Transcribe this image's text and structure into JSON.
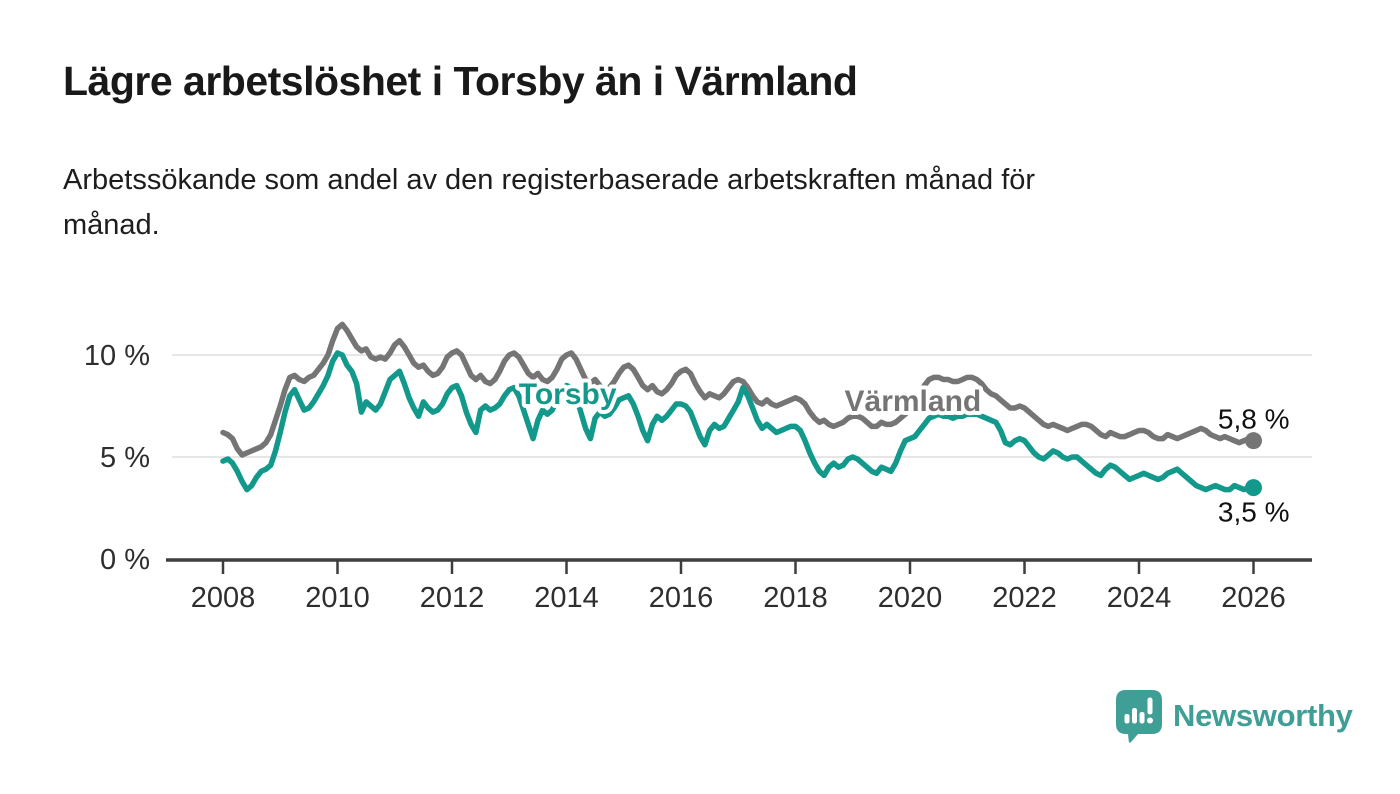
{
  "title": "Lägre arbetslöshet i Torsby än i Värmland",
  "subtitle": "Arbetssökande som andel av den registerbaserade arbetskraften månad för månad.",
  "subtitle_lines": {
    "0": "Arbetssökande som andel av den registerbaserade arbetskraften månad för",
    "1": "månad."
  },
  "footer": {
    "brand": "Newsworthy"
  },
  "colors": {
    "torsby": "#12998b",
    "varmland": "#757575",
    "grid": "#dedede",
    "axis": "#3d3d3d",
    "text": "#2e2e2e",
    "brand": "#3f9f96"
  },
  "chart_data": {
    "type": "line",
    "title": "Lägre arbetslöshet i Torsby än i Värmland",
    "subtitle": "Arbetssökande som andel av den registerbaserade arbetskraften månad för månad.",
    "unit": "%",
    "frequency": "monthly",
    "x_start": 2008.0,
    "x_step": 0.0833333,
    "xlim": [
      2007,
      2027
    ],
    "ylim": [
      0,
      11.8
    ],
    "grid": "horizontal",
    "x_ticks": [
      2008,
      2010,
      2012,
      2014,
      2016,
      2018,
      2020,
      2022,
      2024,
      2026
    ],
    "y_ticks": [
      {
        "value": 0,
        "label": "0 %"
      },
      {
        "value": 5,
        "label": "5 %"
      },
      {
        "value": 10,
        "label": "10 %"
      }
    ],
    "series": [
      {
        "name": "Värmland",
        "color": "#757575",
        "end_value": 5.8,
        "end_label": "5,8 %",
        "values": [
          6.2,
          6.1,
          5.9,
          5.4,
          5.1,
          5.2,
          5.3,
          5.4,
          5.5,
          5.7,
          6.1,
          6.8,
          7.5,
          8.3,
          8.9,
          9.0,
          8.8,
          8.7,
          8.9,
          9.0,
          9.3,
          9.6,
          10.0,
          10.7,
          11.3,
          11.5,
          11.2,
          10.8,
          10.4,
          10.2,
          10.3,
          9.9,
          9.8,
          9.9,
          9.8,
          10.1,
          10.5,
          10.7,
          10.4,
          10.0,
          9.6,
          9.4,
          9.5,
          9.2,
          9.0,
          9.1,
          9.4,
          9.9,
          10.1,
          10.2,
          10.0,
          9.5,
          9.0,
          8.8,
          9.0,
          8.7,
          8.6,
          8.8,
          9.2,
          9.7,
          10.0,
          10.1,
          9.9,
          9.5,
          9.1,
          8.9,
          9.1,
          8.8,
          8.7,
          8.9,
          9.3,
          9.8,
          10.0,
          10.1,
          9.8,
          9.3,
          8.8,
          8.6,
          8.8,
          8.5,
          8.3,
          8.4,
          8.7,
          9.1,
          9.4,
          9.5,
          9.3,
          8.9,
          8.5,
          8.3,
          8.5,
          8.2,
          8.1,
          8.3,
          8.6,
          9.0,
          9.2,
          9.3,
          9.1,
          8.6,
          8.2,
          7.9,
          8.1,
          8.0,
          7.9,
          8.1,
          8.4,
          8.7,
          8.8,
          8.7,
          8.4,
          8.0,
          7.7,
          7.6,
          7.8,
          7.6,
          7.5,
          7.6,
          7.7,
          7.8,
          7.9,
          7.8,
          7.6,
          7.2,
          6.9,
          6.7,
          6.8,
          6.6,
          6.5,
          6.6,
          6.7,
          6.9,
          7.0,
          7.0,
          6.9,
          6.7,
          6.5,
          6.5,
          6.7,
          6.6,
          6.6,
          6.7,
          6.9,
          7.1,
          7.3,
          7.4,
          7.8,
          8.5,
          8.8,
          8.9,
          8.9,
          8.8,
          8.8,
          8.7,
          8.7,
          8.8,
          8.9,
          8.9,
          8.8,
          8.6,
          8.3,
          8.1,
          8.0,
          7.8,
          7.6,
          7.4,
          7.4,
          7.5,
          7.4,
          7.2,
          7.0,
          6.8,
          6.6,
          6.5,
          6.6,
          6.5,
          6.4,
          6.3,
          6.4,
          6.5,
          6.6,
          6.6,
          6.5,
          6.3,
          6.1,
          6.0,
          6.2,
          6.1,
          6.0,
          6.0,
          6.1,
          6.2,
          6.3,
          6.3,
          6.2,
          6.0,
          5.9,
          5.9,
          6.1,
          6.0,
          5.9,
          6.0,
          6.1,
          6.2,
          6.3,
          6.4,
          6.3,
          6.1,
          6.0,
          5.9,
          6.0,
          5.9,
          5.8,
          5.7,
          5.8,
          5.9,
          5.8
        ]
      },
      {
        "name": "Torsby",
        "color": "#12998b",
        "end_value": 3.5,
        "end_label": "3,5 %",
        "values": [
          4.8,
          4.9,
          4.7,
          4.3,
          3.8,
          3.4,
          3.6,
          4.0,
          4.3,
          4.4,
          4.6,
          5.3,
          6.2,
          7.2,
          8.0,
          8.3,
          7.8,
          7.3,
          7.4,
          7.7,
          8.1,
          8.5,
          9.0,
          9.7,
          10.1,
          10.0,
          9.5,
          9.2,
          8.6,
          7.2,
          7.7,
          7.5,
          7.3,
          7.6,
          8.2,
          8.8,
          9.0,
          9.2,
          8.6,
          7.9,
          7.4,
          7.0,
          7.7,
          7.4,
          7.2,
          7.3,
          7.6,
          8.1,
          8.4,
          8.5,
          8.0,
          7.2,
          6.6,
          6.2,
          7.3,
          7.5,
          7.3,
          7.4,
          7.6,
          8.0,
          8.3,
          8.4,
          8.0,
          7.3,
          6.6,
          5.9,
          6.8,
          7.3,
          7.1,
          7.3,
          7.8,
          8.2,
          8.5,
          8.4,
          8.0,
          7.2,
          6.4,
          5.9,
          6.9,
          7.2,
          7.0,
          7.1,
          7.4,
          7.8,
          7.9,
          8.0,
          7.6,
          7.0,
          6.3,
          5.8,
          6.6,
          7.0,
          6.8,
          7.0,
          7.3,
          7.6,
          7.6,
          7.5,
          7.2,
          6.6,
          6.0,
          5.6,
          6.3,
          6.6,
          6.4,
          6.5,
          6.9,
          7.3,
          7.7,
          8.4,
          8.0,
          7.4,
          6.8,
          6.4,
          6.6,
          6.4,
          6.2,
          6.3,
          6.4,
          6.5,
          6.5,
          6.3,
          5.8,
          5.2,
          4.7,
          4.3,
          4.1,
          4.5,
          4.7,
          4.5,
          4.6,
          4.9,
          5.0,
          4.9,
          4.7,
          4.5,
          4.3,
          4.2,
          4.5,
          4.4,
          4.3,
          4.7,
          5.3,
          5.8,
          5.9,
          6.0,
          6.3,
          6.6,
          6.9,
          7.0,
          7.1,
          7.0,
          7.0,
          6.9,
          7.0,
          7.0,
          7.1,
          7.1,
          7.1,
          7.0,
          6.9,
          6.8,
          6.7,
          6.3,
          5.7,
          5.6,
          5.8,
          5.9,
          5.8,
          5.5,
          5.2,
          5.0,
          4.9,
          5.1,
          5.3,
          5.2,
          5.0,
          4.9,
          5.0,
          5.0,
          4.8,
          4.6,
          4.4,
          4.2,
          4.1,
          4.4,
          4.6,
          4.5,
          4.3,
          4.1,
          3.9,
          4.0,
          4.1,
          4.2,
          4.1,
          4.0,
          3.9,
          4.0,
          4.2,
          4.3,
          4.4,
          4.2,
          4.0,
          3.8,
          3.6,
          3.5,
          3.4,
          3.5,
          3.6,
          3.5,
          3.4,
          3.4,
          3.6,
          3.5,
          3.4,
          3.5,
          3.5
        ]
      }
    ],
    "annotations": [
      {
        "text": "Torsby",
        "x": 2014.02,
        "y": 8.1,
        "color": "#12998b"
      },
      {
        "text": "Värmland",
        "x": 2020.05,
        "y": 7.75,
        "color": "#757575"
      }
    ],
    "legend_position": "inline-labels"
  }
}
